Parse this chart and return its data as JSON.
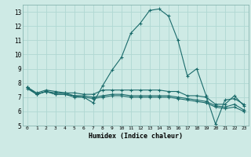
{
  "xlabel": "Humidex (Indice chaleur)",
  "xlim": [
    -0.5,
    23.5
  ],
  "ylim": [
    5,
    13.5
  ],
  "yticks": [
    5,
    6,
    7,
    8,
    9,
    10,
    11,
    12,
    13
  ],
  "xticks": [
    0,
    1,
    2,
    3,
    4,
    5,
    6,
    7,
    8,
    9,
    10,
    11,
    12,
    13,
    14,
    15,
    16,
    17,
    18,
    19,
    20,
    21,
    22,
    23
  ],
  "bg_color": "#ceeae5",
  "line_color": "#1a6b6b",
  "grid_color": "#b0d8d2",
  "series_main": [
    7.7,
    7.3,
    7.5,
    7.4,
    7.3,
    7.1,
    7.0,
    6.6,
    7.8,
    8.9,
    9.8,
    11.5,
    12.2,
    13.1,
    13.2,
    12.7,
    11.0,
    8.5,
    9.0,
    7.1,
    5.1,
    6.8,
    6.9,
    6.5
  ],
  "series2": [
    7.7,
    7.2,
    7.4,
    7.3,
    7.3,
    7.3,
    7.2,
    7.2,
    7.5,
    7.5,
    7.5,
    7.5,
    7.5,
    7.5,
    7.5,
    7.4,
    7.4,
    7.1,
    7.1,
    7.0,
    6.5,
    6.5,
    7.1,
    6.4
  ],
  "series3": [
    7.7,
    7.2,
    7.4,
    7.2,
    7.2,
    7.1,
    7.1,
    7.0,
    7.1,
    7.2,
    7.2,
    7.1,
    7.1,
    7.1,
    7.1,
    7.1,
    7.0,
    6.9,
    6.8,
    6.7,
    6.4,
    6.3,
    6.5,
    6.1
  ],
  "series4": [
    7.6,
    7.2,
    7.4,
    7.2,
    7.2,
    7.0,
    7.0,
    6.9,
    7.0,
    7.1,
    7.1,
    7.0,
    7.0,
    7.0,
    7.0,
    7.0,
    6.9,
    6.8,
    6.7,
    6.6,
    6.3,
    6.2,
    6.3,
    6.0
  ]
}
